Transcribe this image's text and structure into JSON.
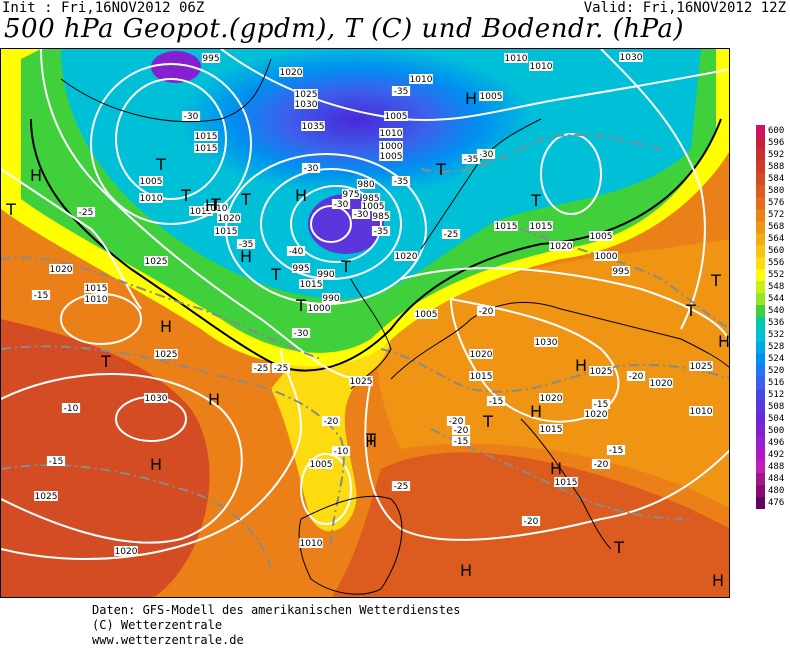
{
  "header": {
    "init": "Init : Fri,16NOV2012 06Z",
    "valid": "Valid: Fri,16NOV2012 12Z",
    "title": "500 hPa Geopot.(gpdm), T (C) und Bodendr. (hPa)"
  },
  "legend": {
    "values": [
      "600",
      "596",
      "592",
      "588",
      "584",
      "580",
      "576",
      "572",
      "568",
      "564",
      "560",
      "556",
      "552",
      "548",
      "544",
      "540",
      "536",
      "532",
      "528",
      "524",
      "520",
      "516",
      "512",
      "508",
      "504",
      "500",
      "496",
      "492",
      "488",
      "484",
      "480",
      "476"
    ],
    "colors": [
      "#d01068",
      "#c8203c",
      "#c83030",
      "#cc3c2c",
      "#d44c24",
      "#dc5c20",
      "#e46c1c",
      "#ec8018",
      "#f09414",
      "#f4ac14",
      "#f8c414",
      "#fcdc10",
      "#ffff00",
      "#c8f018",
      "#98e428",
      "#40d03c",
      "#00c8a8",
      "#00c0d8",
      "#00a8e8",
      "#0090f0",
      "#2078f0",
      "#3c60ec",
      "#4848e0",
      "#5a36dc",
      "#6c28d8",
      "#8420d0",
      "#9820cc",
      "#b018c8",
      "#c020b8",
      "#a01888",
      "#880c70",
      "#64045c"
    ]
  },
  "map": {
    "pressure_labels": [
      "995",
      "1020",
      "1025",
      "1030",
      "1035",
      "1010",
      "1005",
      "1010",
      "1005",
      "1010",
      "1015",
      "1015",
      "1005",
      "1010",
      "1015",
      "1020",
      "1015",
      "1030",
      "1005",
      "1000",
      "995",
      "990",
      "985",
      "980",
      "975",
      "1000",
      "1005",
      "1010",
      "1015",
      "1020",
      "1025",
      "1020",
      "1015",
      "1010",
      "1025",
      "1030",
      "1025",
      "1020",
      "1010",
      "1005",
      "1025",
      "1020",
      "1015",
      "1020",
      "1015",
      "1010",
      "1005",
      "1030",
      "1025",
      "1020",
      "1010",
      "1015",
      "1020",
      "1025",
      "1015",
      "1020",
      "1015",
      "995",
      "990",
      "1000",
      "1005",
      "985"
    ],
    "temp_labels": [
      "-30",
      "-30",
      "-35",
      "-30",
      "-35",
      "-40",
      "-35",
      "-30",
      "-30",
      "-35",
      "-25",
      "-15",
      "-10",
      "-25",
      "-20",
      "-20",
      "-25",
      "-15",
      "-10",
      "-20",
      "-25",
      "-15",
      "-20",
      "-15",
      "-20",
      "-20",
      "-15",
      "-20",
      "-15",
      "-30",
      "-35",
      "-25"
    ],
    "high_marker": "H",
    "low_marker": "T"
  },
  "footer": {
    "line1": "Daten: GFS-Modell des amerikanischen Wetterdienstes",
    "line2": "(C) Wetterzentrale",
    "line3": "www.wetterzentrale.de"
  }
}
